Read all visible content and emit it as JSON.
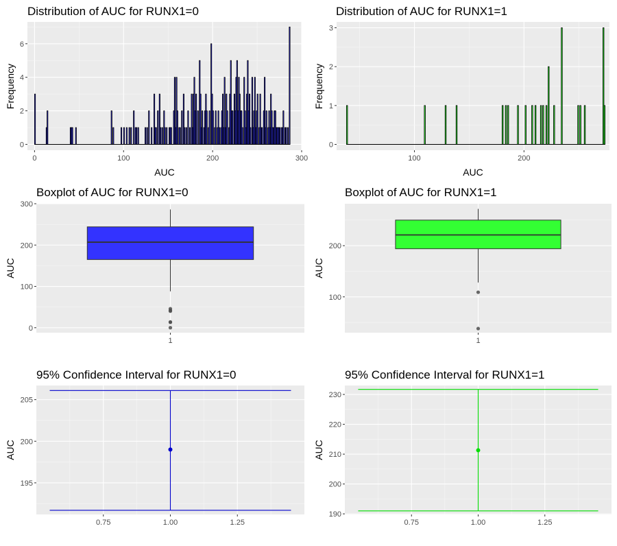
{
  "chart_data": [
    {
      "id": "hist0",
      "type": "bar",
      "title": "Distribution of AUC for RUNX1=0",
      "xlabel": "AUC",
      "ylabel": "Frequency",
      "xlim": [
        -8,
        300
      ],
      "ylim": [
        -0.35,
        7.3
      ],
      "xticks": [
        0,
        100,
        200,
        300
      ],
      "xtick_labels": [
        "0",
        "100",
        "200",
        "300"
      ],
      "yticks": [
        0,
        2,
        4,
        6
      ],
      "ytick_labels": [
        "0",
        "2",
        "4",
        "6"
      ],
      "fill": "#3333ff",
      "bins": [
        [
          0,
          3
        ],
        [
          13,
          1
        ],
        [
          14,
          2
        ],
        [
          40,
          1
        ],
        [
          41,
          1
        ],
        [
          42,
          1
        ],
        [
          46,
          1
        ],
        [
          86,
          2
        ],
        [
          88,
          1
        ],
        [
          97,
          1
        ],
        [
          100,
          1
        ],
        [
          103,
          1
        ],
        [
          106,
          1
        ],
        [
          108,
          1
        ],
        [
          111,
          2
        ],
        [
          113,
          1
        ],
        [
          114,
          1
        ],
        [
          116,
          1
        ],
        [
          124,
          1
        ],
        [
          126,
          1
        ],
        [
          128,
          2
        ],
        [
          131,
          1
        ],
        [
          134,
          3
        ],
        [
          135,
          1
        ],
        [
          136,
          1
        ],
        [
          138,
          2
        ],
        [
          140,
          3
        ],
        [
          141,
          1
        ],
        [
          143,
          1
        ],
        [
          145,
          2
        ],
        [
          146,
          1
        ],
        [
          148,
          1
        ],
        [
          151,
          1
        ],
        [
          152,
          1
        ],
        [
          153,
          1
        ],
        [
          156,
          2
        ],
        [
          157,
          4
        ],
        [
          158,
          1
        ],
        [
          159,
          4
        ],
        [
          160,
          2
        ],
        [
          162,
          1
        ],
        [
          163,
          1
        ],
        [
          165,
          2
        ],
        [
          167,
          3
        ],
        [
          168,
          1
        ],
        [
          170,
          1
        ],
        [
          172,
          2
        ],
        [
          174,
          1
        ],
        [
          176,
          3
        ],
        [
          177,
          1
        ],
        [
          178,
          3
        ],
        [
          179,
          4
        ],
        [
          180,
          2
        ],
        [
          181,
          3
        ],
        [
          183,
          2
        ],
        [
          185,
          5
        ],
        [
          186,
          3
        ],
        [
          187,
          1
        ],
        [
          188,
          2
        ],
        [
          190,
          1
        ],
        [
          191,
          2
        ],
        [
          192,
          3
        ],
        [
          193,
          2
        ],
        [
          195,
          1
        ],
        [
          196,
          2
        ],
        [
          198,
          6
        ],
        [
          199,
          3
        ],
        [
          200,
          2
        ],
        [
          202,
          1
        ],
        [
          203,
          2
        ],
        [
          205,
          1
        ],
        [
          206,
          2
        ],
        [
          207,
          1
        ],
        [
          209,
          1
        ],
        [
          210,
          2
        ],
        [
          211,
          3
        ],
        [
          212,
          1
        ],
        [
          213,
          4
        ],
        [
          214,
          1
        ],
        [
          215,
          3
        ],
        [
          216,
          2
        ],
        [
          218,
          1
        ],
        [
          219,
          3
        ],
        [
          220,
          5
        ],
        [
          221,
          2
        ],
        [
          222,
          2
        ],
        [
          224,
          3
        ],
        [
          225,
          2
        ],
        [
          226,
          4
        ],
        [
          227,
          5
        ],
        [
          228,
          2
        ],
        [
          229,
          4
        ],
        [
          230,
          3
        ],
        [
          231,
          2
        ],
        [
          232,
          2
        ],
        [
          233,
          1
        ],
        [
          235,
          4
        ],
        [
          236,
          2
        ],
        [
          237,
          1
        ],
        [
          238,
          3
        ],
        [
          239,
          5
        ],
        [
          240,
          2
        ],
        [
          241,
          3
        ],
        [
          242,
          1
        ],
        [
          244,
          4
        ],
        [
          245,
          1
        ],
        [
          246,
          2
        ],
        [
          247,
          4
        ],
        [
          248,
          1
        ],
        [
          249,
          2
        ],
        [
          250,
          3
        ],
        [
          252,
          1
        ],
        [
          253,
          3
        ],
        [
          254,
          1
        ],
        [
          255,
          1
        ],
        [
          257,
          2
        ],
        [
          258,
          4
        ],
        [
          259,
          1
        ],
        [
          260,
          2
        ],
        [
          262,
          1
        ],
        [
          263,
          2
        ],
        [
          264,
          1
        ],
        [
          265,
          3
        ],
        [
          266,
          2
        ],
        [
          267,
          1
        ],
        [
          268,
          1
        ],
        [
          269,
          2
        ],
        [
          270,
          2
        ],
        [
          271,
          1
        ],
        [
          272,
          1
        ],
        [
          273,
          1
        ],
        [
          274,
          1
        ],
        [
          275,
          1
        ],
        [
          277,
          1
        ],
        [
          278,
          1
        ],
        [
          279,
          2
        ],
        [
          281,
          1
        ],
        [
          282,
          1
        ],
        [
          284,
          1
        ],
        [
          286,
          7
        ]
      ]
    },
    {
      "id": "hist1",
      "type": "bar",
      "title": "Distribution of AUC for RUNX1=1",
      "xlabel": "AUC",
      "ylabel": "Frequency",
      "xlim": [
        29,
        278
      ],
      "ylim": [
        -0.15,
        3.15
      ],
      "xticks": [
        100,
        200
      ],
      "xtick_labels": [
        "100",
        "200"
      ],
      "yticks": [
        0,
        1,
        2,
        3
      ],
      "ytick_labels": [
        "0",
        "1",
        "2",
        "3"
      ],
      "fill": "#33ff33",
      "bins": [
        [
          38,
          1
        ],
        [
          109,
          1
        ],
        [
          128,
          1
        ],
        [
          138,
          1
        ],
        [
          180,
          1
        ],
        [
          183,
          1
        ],
        [
          185,
          1
        ],
        [
          194,
          1
        ],
        [
          201,
          1
        ],
        [
          207,
          1
        ],
        [
          210,
          1
        ],
        [
          215,
          1
        ],
        [
          217,
          1
        ],
        [
          220,
          1
        ],
        [
          222,
          2
        ],
        [
          227,
          1
        ],
        [
          234,
          3
        ],
        [
          249,
          1
        ],
        [
          251,
          1
        ],
        [
          255,
          1
        ],
        [
          272,
          3
        ],
        [
          273,
          1
        ]
      ]
    },
    {
      "id": "box0",
      "type": "box",
      "title": "Boxplot of AUC for RUNX1=0",
      "xlabel": "",
      "ylabel": "AUC",
      "ylim": [
        -12,
        300
      ],
      "yticks": [
        0,
        100,
        200,
        300
      ],
      "ytick_labels": [
        "0",
        "100",
        "200",
        "300"
      ],
      "xtick_labels": [
        "1"
      ],
      "fill": "#3333ff",
      "whisker_low": 88,
      "q1": 165,
      "median": 207,
      "q3": 244,
      "whisker_high": 286,
      "outliers": [
        0,
        13,
        14,
        40,
        42,
        46
      ]
    },
    {
      "id": "box1",
      "type": "box",
      "title": "Boxplot of AUC for RUNX1=1",
      "xlabel": "",
      "ylabel": "AUC",
      "ylim": [
        30,
        282
      ],
      "yticks": [
        100,
        200
      ],
      "ytick_labels": [
        "100",
        "200"
      ],
      "xtick_labels": [
        "1"
      ],
      "fill": "#33ff33",
      "whisker_low": 128,
      "q1": 194,
      "median": 221,
      "q3": 250,
      "whisker_high": 272,
      "outliers": [
        38,
        109
      ]
    },
    {
      "id": "ci0",
      "type": "errorbar",
      "title": "95% Confidence Interval for RUNX1=0",
      "xlabel": "",
      "ylabel": "AUC",
      "xlim": [
        0.5,
        1.5
      ],
      "ylim": [
        191.2,
        206.7
      ],
      "xticks": [
        0.75,
        1.0,
        1.25
      ],
      "xtick_labels": [
        "0.75",
        "1.00",
        "1.25"
      ],
      "yticks": [
        195,
        200,
        205
      ],
      "ytick_labels": [
        "195",
        "200",
        "205"
      ],
      "color": "#0000cc",
      "x": 1.0,
      "mean": 199.0,
      "lower": 191.7,
      "upper": 206.1
    },
    {
      "id": "ci1",
      "type": "errorbar",
      "title": "95% Confidence Interval for RUNX1=1",
      "xlabel": "",
      "ylabel": "AUC",
      "xlim": [
        0.5,
        1.5
      ],
      "ylim": [
        189.8,
        233.0
      ],
      "xticks": [
        0.75,
        1.0,
        1.25
      ],
      "xtick_labels": [
        "0.75",
        "1.00",
        "1.25"
      ],
      "yticks": [
        190,
        200,
        210,
        220,
        230
      ],
      "ytick_labels": [
        "190",
        "200",
        "210",
        "220",
        "230"
      ],
      "color": "#00dd00",
      "x": 1.0,
      "mean": 211.3,
      "lower": 191.0,
      "upper": 231.7
    }
  ]
}
